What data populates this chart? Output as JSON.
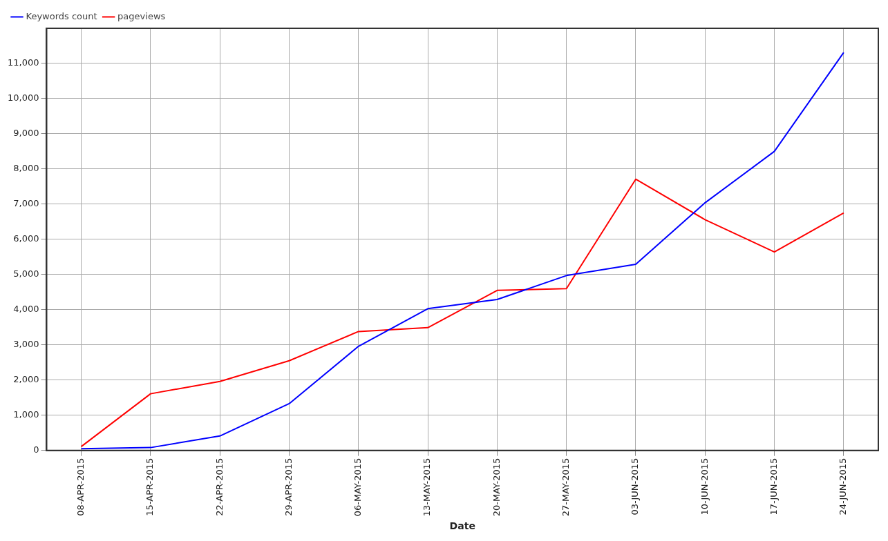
{
  "chart_data": {
    "type": "line",
    "xlabel": "Date",
    "categories": [
      "08-APR-2015",
      "15-APR-2015",
      "22-APR-2015",
      "29-APR-2015",
      "06-MAY-2015",
      "13-MAY-2015",
      "20-MAY-2015",
      "27-MAY-2015",
      "03-JUN-2015",
      "10-JUN-2015",
      "17-JUN-2015",
      "24-JUN-2015"
    ],
    "series": [
      {
        "name": "Keywords count",
        "color": "#0000ff",
        "values": [
          50,
          80,
          410,
          1330,
          2960,
          4030,
          4290,
          4970,
          5290,
          7040,
          8500,
          11310
        ]
      },
      {
        "name": "pageviews",
        "color": "#ff0000",
        "values": [
          110,
          1610,
          1960,
          2550,
          3380,
          3490,
          4550,
          4600,
          7710,
          6560,
          5640,
          6750
        ]
      }
    ],
    "ylim": [
      0,
      12000
    ],
    "yticks": [
      {
        "value": 0,
        "label": "0"
      },
      {
        "value": 1000,
        "label": "1,000"
      },
      {
        "value": 2000,
        "label": "2,000"
      },
      {
        "value": 3000,
        "label": "3,000"
      },
      {
        "value": 4000,
        "label": "4,000"
      },
      {
        "value": 5000,
        "label": "5,000"
      },
      {
        "value": 6000,
        "label": "6,000"
      },
      {
        "value": 7000,
        "label": "7,000"
      },
      {
        "value": 8000,
        "label": "8,000"
      },
      {
        "value": 9000,
        "label": "9,000"
      },
      {
        "value": 10000,
        "label": "10,000"
      },
      {
        "value": 11000,
        "label": "11,000"
      }
    ],
    "grid": true,
    "legend": "top left",
    "marker": "none",
    "line_style": "solid"
  }
}
